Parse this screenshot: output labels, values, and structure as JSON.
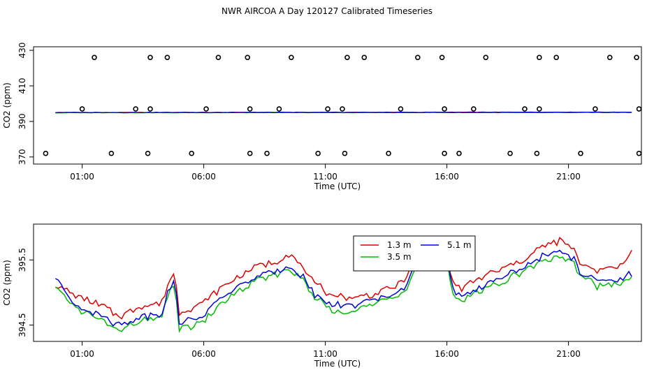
{
  "title": "NWR AIRCOA A  Day 120127  Calibrated Timeseries",
  "chart_data": [
    {
      "type": "scatter",
      "xlabel": "Time (UTC)",
      "ylabel": "CO2 (ppm)",
      "xlim": [
        -1.0,
        24.0
      ],
      "ylim": [
        366,
        432
      ],
      "x_ticks": [
        1,
        6,
        11,
        16,
        21
      ],
      "x_tick_labels": [
        "01:00",
        "06:00",
        "11:00",
        "16:00",
        "21:00"
      ],
      "y_ticks": [
        370,
        390,
        410,
        430
      ],
      "y_tick_labels": [
        "370",
        "390",
        "410",
        "430"
      ],
      "colors": {
        "line_1": "#dd0000",
        "line_2": "#00bb00",
        "line_3": "#0000dd",
        "points": "#000000"
      },
      "points": [
        [
          -0.5,
          372
        ],
        [
          1.0,
          397
        ],
        [
          1.5,
          426
        ],
        [
          2.2,
          372
        ],
        [
          3.2,
          397
        ],
        [
          3.7,
          372
        ],
        [
          3.8,
          397
        ],
        [
          3.8,
          426
        ],
        [
          4.5,
          426
        ],
        [
          5.5,
          372
        ],
        [
          6.1,
          397
        ],
        [
          6.6,
          426
        ],
        [
          7.8,
          426
        ],
        [
          7.9,
          397
        ],
        [
          7.9,
          372
        ],
        [
          8.6,
          372
        ],
        [
          9.1,
          397
        ],
        [
          9.6,
          426
        ],
        [
          10.7,
          372
        ],
        [
          11.1,
          397
        ],
        [
          11.7,
          397
        ],
        [
          11.8,
          372
        ],
        [
          11.9,
          426
        ],
        [
          12.6,
          426
        ],
        [
          13.6,
          372
        ],
        [
          14.1,
          397
        ],
        [
          14.8,
          426
        ],
        [
          15.8,
          426
        ],
        [
          15.9,
          397
        ],
        [
          15.9,
          372
        ],
        [
          16.5,
          372
        ],
        [
          17.1,
          397
        ],
        [
          17.6,
          426
        ],
        [
          18.6,
          372
        ],
        [
          19.2,
          397
        ],
        [
          19.7,
          372
        ],
        [
          19.8,
          397
        ],
        [
          19.8,
          426
        ],
        [
          20.5,
          426
        ],
        [
          21.5,
          372
        ],
        [
          22.1,
          397
        ],
        [
          22.7,
          426
        ],
        [
          23.8,
          426
        ],
        [
          23.9,
          397
        ],
        [
          23.9,
          372
        ]
      ],
      "series": [
        {
          "name": "1.3 m",
          "start_value": 395.0,
          "end_value": 395.2
        },
        {
          "name": "3.5 m",
          "start_value": 394.9,
          "end_value": 395.1
        },
        {
          "name": "5.1 m",
          "start_value": 395.0,
          "end_value": 395.1
        }
      ]
    },
    {
      "type": "line",
      "xlabel": "Time (UTC)",
      "ylabel": "CO2 (ppm)",
      "xlim": [
        -1.0,
        24.0
      ],
      "ylim": [
        394.25,
        396.05
      ],
      "x_ticks": [
        1,
        6,
        11,
        16,
        21
      ],
      "x_tick_labels": [
        "01:00",
        "06:00",
        "11:00",
        "16:00",
        "21:00"
      ],
      "y_ticks": [
        394.5,
        395.5
      ],
      "y_tick_labels": [
        "394.5",
        "395.5"
      ],
      "legend": {
        "placement": "top-center",
        "entries": [
          "1.3 m",
          "3.5 m",
          "5.1 m"
        ]
      },
      "x_knots": [
        -0.1,
        0.5,
        1.0,
        2.0,
        2.6,
        3.3,
        4.3,
        4.6,
        4.8,
        5.0,
        6.0,
        7.0,
        8.0,
        9.0,
        9.5,
        10.0,
        10.5,
        11.2,
        12.0,
        13.0,
        14.0,
        14.4,
        14.8,
        15.5,
        16.0,
        16.2,
        16.6,
        17.2,
        18.0,
        19.0,
        20.0,
        20.8,
        21.2,
        21.5,
        22.2,
        23.0,
        23.6
      ],
      "series": [
        {
          "name": "1.3 m",
          "color": "#dd0000",
          "values": [
            395.1,
            395.0,
            394.92,
            394.75,
            394.62,
            394.78,
            394.85,
            395.22,
            395.3,
            394.68,
            394.85,
            395.15,
            395.38,
            395.48,
            395.58,
            395.42,
            395.15,
            394.98,
            394.92,
            394.98,
            395.12,
            395.3,
            395.58,
            395.62,
            395.55,
            395.2,
            395.05,
            395.18,
            395.32,
            395.48,
            395.72,
            395.8,
            395.65,
            395.45,
            395.35,
            395.38,
            395.62
          ]
        },
        {
          "name": "3.5 m",
          "color": "#00bb00",
          "values": [
            395.05,
            394.85,
            394.72,
            394.52,
            394.4,
            394.55,
            394.62,
            395.05,
            395.15,
            394.42,
            394.55,
            394.92,
            395.15,
            395.28,
            395.35,
            395.22,
            394.95,
            394.75,
            394.72,
            394.82,
            394.95,
            395.12,
            395.45,
            395.48,
            395.58,
            395.05,
            394.85,
            395.0,
            395.12,
            395.3,
            395.5,
            395.55,
            395.45,
            395.25,
            395.1,
            395.12,
            395.22
          ]
        },
        {
          "name": "5.1 m",
          "color": "#0000dd",
          "values": [
            395.22,
            394.9,
            394.78,
            394.6,
            394.48,
            394.62,
            394.7,
            395.1,
            395.18,
            394.52,
            394.65,
            395.0,
            395.22,
            395.32,
            395.4,
            395.28,
            395.0,
            394.82,
            394.8,
            394.88,
            395.0,
            395.18,
            395.5,
            395.55,
            395.72,
            395.12,
            394.9,
            395.05,
            395.18,
            395.35,
            395.58,
            395.62,
            395.52,
            395.3,
            395.18,
            395.2,
            395.28
          ]
        }
      ]
    }
  ]
}
